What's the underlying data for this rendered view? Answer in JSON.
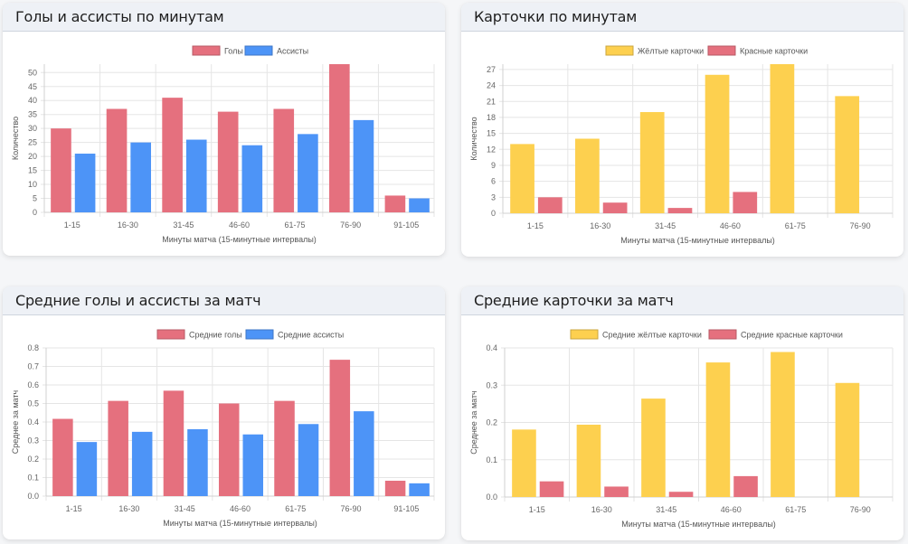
{
  "chart_data": [
    {
      "id": "c1",
      "type": "bar",
      "title": "Голы и ассисты по минутам",
      "categories": [
        "1-15",
        "16-30",
        "31-45",
        "46-60",
        "61-75",
        "76-90",
        "91-105"
      ],
      "series": [
        {
          "name": "Голы",
          "values": [
            30,
            37,
            41,
            36,
            37,
            53,
            6
          ],
          "color": "#e5707e"
        },
        {
          "name": "Ассисты",
          "values": [
            21,
            25,
            26,
            24,
            28,
            33,
            5
          ],
          "color": "#4d94f7"
        }
      ],
      "xlabel": "Минуты матча (15-минутные интервалы)",
      "ylabel": "Количество",
      "ylim": [
        0,
        53
      ],
      "yticks": [
        0,
        5,
        10,
        15,
        20,
        25,
        30,
        35,
        40,
        45,
        50
      ],
      "tick_decimals": 0,
      "grid": true,
      "legend": "top-center"
    },
    {
      "id": "c2",
      "type": "bar",
      "title": "Карточки по минутам",
      "categories": [
        "1-15",
        "16-30",
        "31-45",
        "46-60",
        "61-75",
        "76-90"
      ],
      "series": [
        {
          "name": "Жёлтые карточки",
          "values": [
            13,
            14,
            19,
            26,
            28,
            22
          ],
          "color": "#fdd04f"
        },
        {
          "name": "Красные карточки",
          "values": [
            3,
            2,
            1,
            4,
            0,
            0
          ],
          "color": "#e5707e"
        }
      ],
      "xlabel": "Минуты матча (15-минутные интервалы)",
      "ylabel": "Количество",
      "ylim": [
        0,
        28
      ],
      "yticks": [
        0,
        3,
        6,
        9,
        12,
        15,
        18,
        21,
        24,
        27
      ],
      "tick_decimals": 0,
      "grid": true,
      "legend": "top-center"
    },
    {
      "id": "c3",
      "type": "bar",
      "title": "Средние голы и ассисты за матч",
      "categories": [
        "1-15",
        "16-30",
        "31-45",
        "46-60",
        "61-75",
        "76-90",
        "91-105"
      ],
      "series": [
        {
          "name": "Средние голы",
          "values": [
            0.417,
            0.514,
            0.569,
            0.5,
            0.514,
            0.736,
            0.083
          ],
          "color": "#e5707e"
        },
        {
          "name": "Средние ассисты",
          "values": [
            0.292,
            0.347,
            0.361,
            0.333,
            0.389,
            0.458,
            0.069
          ],
          "color": "#4d94f7"
        }
      ],
      "xlabel": "Минуты матча (15-минутные интервалы)",
      "ylabel": "Среднее за матч",
      "ylim": [
        0,
        0.8
      ],
      "yticks": [
        0,
        0.1,
        0.2,
        0.3,
        0.4,
        0.5,
        0.6,
        0.7,
        0.8
      ],
      "tick_decimals": 1,
      "grid": true,
      "legend": "top-center"
    },
    {
      "id": "c4",
      "type": "bar",
      "title": "Средние карточки за матч",
      "categories": [
        "1-15",
        "16-30",
        "31-45",
        "46-60",
        "61-75",
        "76-90"
      ],
      "series": [
        {
          "name": "Средние жёлтые карточки",
          "values": [
            0.181,
            0.194,
            0.264,
            0.361,
            0.389,
            0.306
          ],
          "color": "#fdd04f"
        },
        {
          "name": "Средние красные карточки",
          "values": [
            0.042,
            0.028,
            0.014,
            0.056,
            0,
            0
          ],
          "color": "#e5707e"
        }
      ],
      "xlabel": "Минуты матча (15-минутные интервалы)",
      "ylabel": "Среднее за матч",
      "ylim": [
        0,
        0.4
      ],
      "yticks": [
        0,
        0.1,
        0.2,
        0.3,
        0.4
      ],
      "tick_decimals": 1,
      "grid": true,
      "legend": "top-center"
    }
  ]
}
